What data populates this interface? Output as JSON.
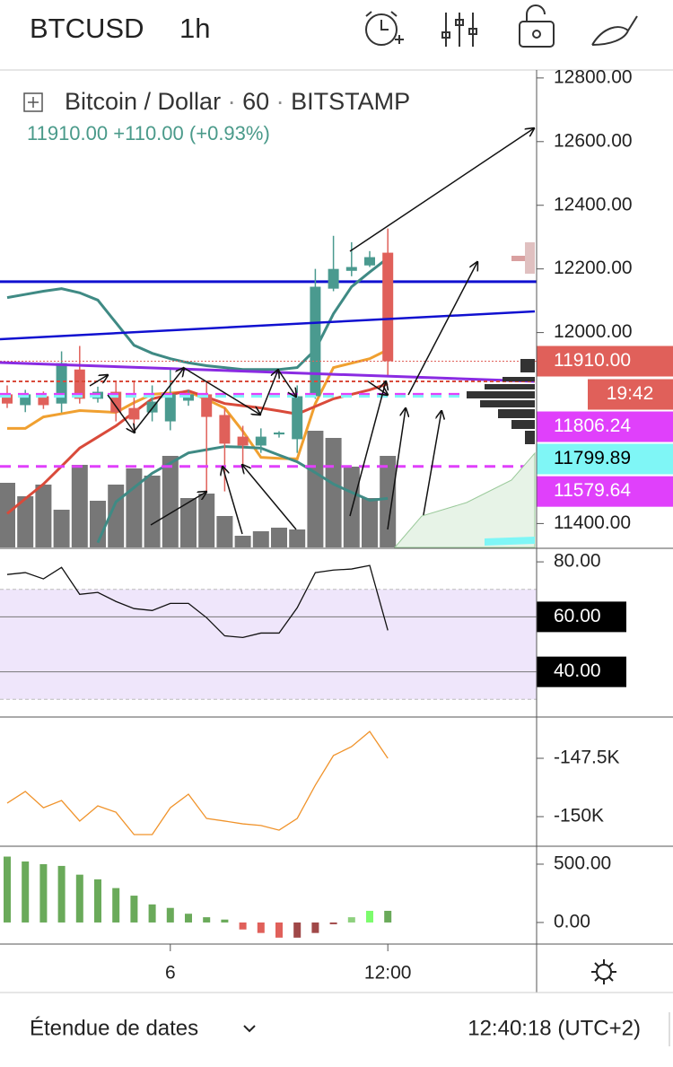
{
  "header": {
    "symbol": "BTCUSD",
    "interval": "1h"
  },
  "legend": {
    "name": "Bitcoin / Dollar",
    "interval": "60",
    "exchange": "BITSTAMP",
    "price": "11910.00",
    "change": "+110.00",
    "change_pct": "(+0.93%)"
  },
  "footer": {
    "range": "Étendue de dates",
    "clock": "12:40:18 (UTC+2)"
  },
  "chart_data": [
    {
      "type": "candlestick",
      "categories": [
        null,
        null,
        null,
        null,
        null,
        null,
        null,
        null,
        null,
        "6",
        null,
        null,
        null,
        null,
        null,
        null,
        null,
        null,
        null,
        null,
        null,
        "12:00"
      ],
      "open": [
        11806,
        11772,
        11800,
        11777,
        11884,
        11792,
        11814,
        11763,
        11749,
        11721,
        11786,
        11806,
        11741,
        11673,
        11645,
        11680,
        11665,
        11800,
        12138,
        12194,
        12211,
        12251
      ],
      "high": [
        11834,
        11820,
        11815,
        11941,
        11958,
        11830,
        11848,
        11848,
        11834,
        11890,
        11820,
        11848,
        11763,
        11707,
        11699,
        11690,
        11834,
        12200,
        12304,
        12284,
        12256,
        12327
      ],
      "low": [
        11763,
        11750,
        11760,
        11749,
        11777,
        11780,
        11721,
        11693,
        11721,
        11693,
        11770,
        11501,
        11501,
        11580,
        11622,
        11670,
        11622,
        11792,
        12130,
        12177,
        12206,
        11862
      ],
      "close": [
        11777,
        11806,
        11772,
        11904,
        11792,
        11814,
        11749,
        11727,
        11783,
        11806,
        11806,
        11735,
        11651,
        11645,
        11673,
        11686,
        11800,
        12144,
        12200,
        12206,
        12237,
        11910
      ],
      "up_color": "#4a9a8f",
      "down_color": "#e0605a",
      "volume": [
        72,
        57,
        70,
        42,
        92,
        52,
        70,
        88,
        80,
        102,
        55,
        60,
        35,
        13,
        18,
        22,
        20,
        130,
        122,
        90,
        55,
        102
      ],
      "volume_color": "#777777",
      "lines": [
        {
          "color": "#3f8a84",
          "values": [
            12110,
            12120,
            12130,
            12138,
            12125,
            12102,
            12031,
            11960,
            11935,
            11918,
            11905,
            11896,
            11890,
            11884,
            11884,
            11884,
            11890,
            11946,
            12059,
            12144,
            12190,
            12234
          ]
        },
        {
          "color": "#f0a030",
          "values": [
            11699,
            11699,
            11735,
            11745,
            11755,
            11752,
            11749,
            11780,
            11806,
            11810,
            11814,
            11790,
            11763,
            11690,
            11608,
            11605,
            11603,
            11777,
            11890,
            11904,
            11918,
            11946
          ]
        },
        {
          "color": "#d94a3a",
          "values": [
            11431,
            11478,
            11524,
            11580,
            11637,
            11672,
            11707,
            11750,
            11792,
            11805,
            11817,
            11797,
            11777,
            11770,
            11763,
            11754,
            11744,
            11768,
            11792,
            11806,
            11820,
            11839
          ]
        },
        {
          "color": "#3f8a84",
          "values": [
            null,
            null,
            null,
            null,
            null,
            11340,
            11468,
            11513,
            11558,
            11590,
            11622,
            11632,
            11642,
            11640,
            11637,
            11615,
            11594,
            11560,
            11524,
            11498,
            11473,
            11479
          ]
        }
      ],
      "hlines": [
        {
          "value": 12160,
          "color": "#1010d0"
        }
      ],
      "price_labels": [
        {
          "value": 11910,
          "label": "11910.00",
          "color": "#e0605a",
          "text_color": "#ffffff"
        },
        {
          "value": 11806.24,
          "label": "11806.24",
          "color": "#e040fb",
          "text_color": "#ffffff"
        },
        {
          "value": 11799.89,
          "label": "11799.89",
          "color": "#7ff6f6",
          "text_color": "#000000"
        },
        {
          "value": 11579.64,
          "label": "11579.64",
          "color": "#e040fb",
          "text_color": "#ffffff"
        }
      ],
      "countdown": "19:42",
      "ylim": [
        11325,
        12825
      ],
      "yticks": [
        {
          "value": 12800,
          "label": "12800.00"
        },
        {
          "value": 12600,
          "label": "12600.00"
        },
        {
          "value": 12400,
          "label": "12400.00"
        },
        {
          "value": 12200,
          "label": "12200.00"
        },
        {
          "value": 12000,
          "label": "12000.00"
        },
        {
          "value": 11400,
          "label": "11400.00"
        }
      ]
    },
    {
      "type": "line",
      "color": "#111111",
      "values": [
        75.4,
        76.1,
        73.8,
        78,
        68.2,
        68.9,
        65.6,
        63,
        62.3,
        64.9,
        64.9,
        59.7,
        53.1,
        52.5,
        54.1,
        54.1,
        63.3,
        76.1,
        77,
        77.4,
        78.7,
        55.1
      ],
      "band": [
        30,
        70
      ],
      "band_color": "#efe6fb",
      "ylim": [
        23.9,
        84.6
      ],
      "yticks": [
        {
          "value": 80,
          "label": "80.00"
        },
        {
          "value": 60,
          "label": "60.00"
        },
        {
          "value": 40,
          "label": "40.00"
        }
      ]
    },
    {
      "type": "line",
      "color": "#f0932b",
      "values": [
        -149420,
        -148920,
        -149620,
        -149310,
        -150190,
        -149540,
        -149810,
        -150770,
        -150770,
        -149620,
        -149040,
        -150080,
        -150190,
        -150310,
        -150380,
        -150580,
        -150080,
        -148650,
        -147380,
        -147000,
        -146350,
        -147500
      ],
      "ylim": [
        -151231,
        -145769
      ],
      "yticks": [
        {
          "value": -147500,
          "label": "-147.5K"
        },
        {
          "value": -150000,
          "label": "-150K"
        }
      ]
    },
    {
      "type": "bar",
      "values": [
        565,
        523,
        500,
        485,
        410,
        370,
        295,
        230,
        155,
        125,
        75,
        45,
        25,
        -60,
        -90,
        -130,
        -130,
        -90,
        -15,
        45,
        100,
        100
      ],
      "colors": [
        "#6aaa5a",
        "#6aaa5a",
        "#6aaa5a",
        "#6aaa5a",
        "#6aaa5a",
        "#6aaa5a",
        "#6aaa5a",
        "#6aaa5a",
        "#6aaa5a",
        "#6aaa5a",
        "#6aaa5a",
        "#6aaa5a",
        "#6aaa5a",
        "#e0605a",
        "#e0605a",
        "#e0605a",
        "#a04848",
        "#a04848",
        "#a04848",
        "#8ed07e",
        "#7cfc6c",
        "#6aaa5a"
      ],
      "ylim": [
        -185,
        646
      ],
      "yticks": [
        {
          "value": 500,
          "label": "500.00"
        },
        {
          "value": 0,
          "label": "0.00"
        }
      ]
    }
  ]
}
